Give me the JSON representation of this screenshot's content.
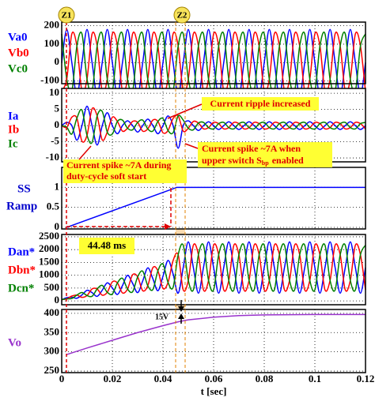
{
  "chart_data": [
    {
      "type": "spline",
      "ylim": [
        -115,
        220
      ],
      "yticks": [
        -100,
        0,
        100,
        200
      ],
      "x": [
        0,
        0.002,
        0.004,
        0.006,
        0.008,
        0.01,
        0.012,
        0.014,
        0.016,
        0.018,
        0.02,
        0.022,
        0.024,
        0.026,
        0.028,
        0.03,
        0.032,
        0.034,
        0.036,
        0.038,
        0.04,
        0.042,
        0.044,
        0.046,
        0.048,
        0.05,
        0.052,
        0.054,
        0.056,
        0.058,
        0.06,
        0.062,
        0.064,
        0.066,
        0.068,
        0.07,
        0.072,
        0.074,
        0.076,
        0.078,
        0.08,
        0.082,
        0.084,
        0.086,
        0.088,
        0.09,
        0.092,
        0.094,
        0.096,
        0.098,
        0.1,
        0.102,
        0.104,
        0.106,
        0.108,
        0.11,
        0.112,
        0.114,
        0.116,
        0.118,
        0.12
      ],
      "series": [
        {
          "name": "Va0",
          "color": "#0000ff",
          "values": [
            0,
            180,
            0,
            -180,
            0,
            180,
            0,
            -180,
            0,
            180,
            0,
            -180,
            0,
            180,
            0,
            -180,
            0,
            180,
            0,
            -180,
            0,
            180,
            0,
            -180,
            0,
            180,
            0,
            -180,
            0,
            180,
            0,
            -180,
            0,
            180,
            0,
            -180,
            0,
            180,
            0,
            -180,
            0,
            180,
            0,
            -180,
            0,
            180,
            0,
            -180,
            0,
            180,
            0,
            -180,
            0,
            180,
            0,
            -180,
            0,
            180,
            0,
            -180,
            0
          ]
        },
        {
          "name": "Vb0",
          "color": "#ff0000",
          "values": [
            -156,
            -90,
            156,
            90,
            -156,
            -90,
            156,
            90,
            -156,
            -90,
            156,
            90,
            -156,
            -90,
            156,
            90,
            -156,
            -90,
            156,
            90,
            -156,
            -90,
            156,
            90,
            -156,
            -90,
            156,
            90,
            -156,
            -90,
            156,
            90,
            -156,
            -90,
            156,
            90,
            -156,
            -90,
            156,
            90,
            -156,
            -90,
            156,
            90,
            -156,
            -90,
            156,
            90,
            -156,
            -90,
            156,
            90,
            -156,
            -90,
            156,
            90,
            -156,
            -90,
            156,
            90,
            -156
          ]
        },
        {
          "name": "Vc0",
          "color": "#008000",
          "values": [
            156,
            -90,
            -156,
            90,
            156,
            -90,
            -156,
            90,
            156,
            -90,
            -156,
            90,
            156,
            -90,
            -156,
            90,
            156,
            -90,
            -156,
            90,
            156,
            -90,
            -156,
            90,
            156,
            -90,
            -156,
            90,
            156,
            -90,
            -156,
            90,
            156,
            -90,
            -156,
            90,
            156,
            -90,
            -156,
            90,
            156,
            -90,
            -156,
            90,
            156,
            -90,
            -156,
            90,
            156,
            -90,
            -156,
            90,
            156,
            -90,
            -156,
            90,
            156,
            -90,
            -156,
            90,
            156
          ]
        }
      ]
    },
    {
      "type": "spline",
      "ylim": [
        -11.2,
        11.5
      ],
      "yticks": [
        -10,
        -5,
        0,
        5,
        10
      ],
      "x": [
        0,
        0.002,
        0.004,
        0.006,
        0.008,
        0.01,
        0.012,
        0.014,
        0.016,
        0.018,
        0.02,
        0.022,
        0.024,
        0.026,
        0.028,
        0.03,
        0.032,
        0.034,
        0.036,
        0.038,
        0.04,
        0.042,
        0.044,
        0.046,
        0.048,
        0.05,
        0.052,
        0.054,
        0.056,
        0.058,
        0.06,
        0.062,
        0.064,
        0.066,
        0.068,
        0.07,
        0.072,
        0.074,
        0.076,
        0.078,
        0.08,
        0.082,
        0.084,
        0.086,
        0.088,
        0.09,
        0.092,
        0.094,
        0.096,
        0.098,
        0.1,
        0.102,
        0.104,
        0.106,
        0.108,
        0.11,
        0.112,
        0.114,
        0.116,
        0.118,
        0.12
      ],
      "series": [
        {
          "name": "Ia",
          "color": "#0000ff",
          "values": [
            0,
            1,
            0,
            -4.5,
            0,
            6,
            0,
            -6,
            0,
            4,
            0,
            -2.5,
            0,
            1.5,
            0,
            -2,
            0,
            2,
            0,
            -2.5,
            0,
            3,
            0,
            -7,
            0,
            1.5,
            0,
            -1.5,
            0,
            1.2,
            0,
            -1.2,
            0,
            1.2,
            0,
            -1.2,
            0,
            1.2,
            0,
            -1.2,
            0,
            1.2,
            0,
            -1.2,
            0,
            1.2,
            0,
            -1.2,
            0,
            1.2,
            0,
            -1.2,
            0,
            1.2,
            0,
            -1.2,
            0,
            1.2,
            0,
            -1.2,
            0
          ]
        },
        {
          "name": "Ib",
          "color": "#ff0000",
          "values": [
            0,
            -0.5,
            2.6,
            2.3,
            -4.8,
            -3,
            5.2,
            3,
            -4.4,
            -2,
            2.6,
            1.3,
            -1.7,
            -0.8,
            1.3,
            1,
            -1.7,
            -1,
            1.7,
            1.3,
            -2.2,
            -1.5,
            2.2,
            3,
            -1.7,
            -0.8,
            1.3,
            0.8,
            -1,
            -0.6,
            1,
            0.6,
            -1,
            -0.6,
            1,
            0.6,
            -1,
            -0.6,
            1,
            0.6,
            -1,
            -0.6,
            1,
            0.6,
            -1,
            -0.6,
            1,
            0.6,
            -1,
            -0.6,
            1,
            0.6,
            -1,
            -0.6,
            1,
            0.6,
            -1,
            -0.6,
            1,
            0.6,
            -1
          ]
        },
        {
          "name": "Ic",
          "color": "#008000",
          "values": [
            0,
            -0.5,
            -2.6,
            2.3,
            4.8,
            -3,
            -5.2,
            3,
            4.4,
            -2,
            -2.6,
            1.3,
            1.7,
            -0.8,
            -1.3,
            1,
            1.7,
            -1,
            -1.7,
            1.3,
            2.2,
            -1.5,
            -2.2,
            3,
            1.7,
            -0.8,
            -1.3,
            0.8,
            1,
            -0.6,
            -1,
            0.6,
            1,
            -0.6,
            -1,
            0.6,
            1,
            -0.6,
            -1,
            0.6,
            1,
            -0.6,
            -1,
            0.6,
            1,
            -0.6,
            -1,
            0.6,
            1,
            -0.6,
            -1,
            0.6,
            1,
            -0.6,
            -1,
            0.6,
            1,
            -0.6,
            -1,
            0.6,
            1
          ]
        }
      ]
    },
    {
      "type": "line",
      "ylabel": [
        "SS",
        "Ramp"
      ],
      "ylim": [
        -0.04,
        1.5
      ],
      "yticks": [
        0,
        0.5,
        1
      ],
      "x": [
        0.002,
        0.0455,
        0.12
      ],
      "series": [
        {
          "color": "#0000ff",
          "values": [
            0,
            1,
            1
          ]
        }
      ]
    },
    {
      "type": "spline",
      "ylim": [
        -150,
        2590
      ],
      "yticks": [
        0,
        500,
        1000,
        1500,
        2000,
        2500
      ],
      "x": [
        0,
        0.002,
        0.004,
        0.006,
        0.008,
        0.01,
        0.012,
        0.014,
        0.016,
        0.018,
        0.02,
        0.022,
        0.024,
        0.026,
        0.028,
        0.03,
        0.032,
        0.034,
        0.036,
        0.038,
        0.04,
        0.042,
        0.044,
        0.046,
        0.048,
        0.05,
        0.052,
        0.054,
        0.056,
        0.058,
        0.06,
        0.062,
        0.064,
        0.066,
        0.068,
        0.07,
        0.072,
        0.074,
        0.076,
        0.078,
        0.08,
        0.082,
        0.084,
        0.086,
        0.088,
        0.09,
        0.092,
        0.094,
        0.096,
        0.098,
        0.1,
        0.102,
        0.104,
        0.106,
        0.108,
        0.11,
        0.112,
        0.114,
        0.116,
        0.118,
        0.12
      ],
      "series": [
        {
          "name": "Dan*",
          "color": "#0000ff",
          "values": [
            50,
            122,
            141,
            104,
            232,
            413,
            323,
            177,
            414,
            704,
            505,
            250,
            596,
            996,
            687,
            323,
            778,
            1287,
            869,
            396,
            960,
            1578,
            1050,
            300,
            1300,
            2300,
            1300,
            300,
            1300,
            2300,
            1300,
            300,
            1300,
            2300,
            1300,
            300,
            1300,
            2300,
            1300,
            300,
            1300,
            2300,
            1300,
            300,
            1300,
            2300,
            1300,
            300,
            1300,
            2300,
            1300,
            300,
            1300,
            2300,
            1300,
            300,
            1300,
            2300,
            1300,
            300,
            1300
          ]
        },
        {
          "name": "Dbn*",
          "color": "#ff0000",
          "values": [
            50,
            81,
            189,
            227,
            137,
            209,
            466,
            464,
            224,
            337,
            743,
            700,
            311,
            464,
            1019,
            937,
            399,
            591,
            1296,
            1173,
            486,
            719,
            1572,
            1800,
            430,
            800,
            2170,
            1800,
            430,
            800,
            2170,
            1800,
            430,
            800,
            2170,
            1800,
            430,
            800,
            2170,
            1800,
            430,
            800,
            2170,
            1800,
            430,
            800,
            2170,
            1800,
            430,
            800,
            2170,
            1800,
            430,
            800,
            2170,
            1800,
            430,
            800,
            2170,
            1800,
            430
          ]
        },
        {
          "name": "Dcn*",
          "color": "#008000",
          "values": [
            50,
            81,
            93,
            227,
            327,
            209,
            180,
            464,
            604,
            337,
            267,
            700,
            881,
            464,
            355,
            937,
            1157,
            591,
            442,
            1173,
            1434,
            719,
            528,
            1800,
            2170,
            800,
            430,
            1800,
            2170,
            800,
            430,
            1800,
            2170,
            800,
            430,
            1800,
            2170,
            800,
            430,
            1800,
            2170,
            800,
            430,
            1800,
            2170,
            800,
            430,
            1800,
            2170,
            800,
            430,
            1800,
            2170,
            800,
            430,
            1800,
            2170,
            800,
            430,
            1800,
            2170
          ]
        }
      ]
    },
    {
      "type": "line",
      "ylim": [
        246,
        410
      ],
      "yticks": [
        250,
        300,
        350,
        400
      ],
      "xlabel": "t [sec]",
      "xlim": [
        0,
        0.12
      ],
      "xticks": [
        0,
        0.02,
        0.04,
        0.06,
        0.08,
        0.1,
        0.12
      ],
      "x": [
        0.002,
        0.01,
        0.02,
        0.03,
        0.04,
        0.046,
        0.05,
        0.06,
        0.07,
        0.08,
        0.1,
        0.12
      ],
      "series": [
        {
          "name": "Vo",
          "color": "#9933cc",
          "values": [
            293,
            310,
            330,
            350,
            368,
            378,
            383,
            390,
            394,
            396,
            397,
            397
          ]
        }
      ]
    }
  ],
  "annotations": {
    "z1": "Z1",
    "z2": "Z2",
    "ripple": "Current ripple increased",
    "spike_sbp": [
      "Current spike ~7A when",
      "upper switch S",
      "bp",
      "enabled"
    ],
    "spike_ss": [
      "Current spike ~7A during",
      "duty-cycle soft start"
    ],
    "duration": "44.48 ms",
    "dv": "15V"
  }
}
